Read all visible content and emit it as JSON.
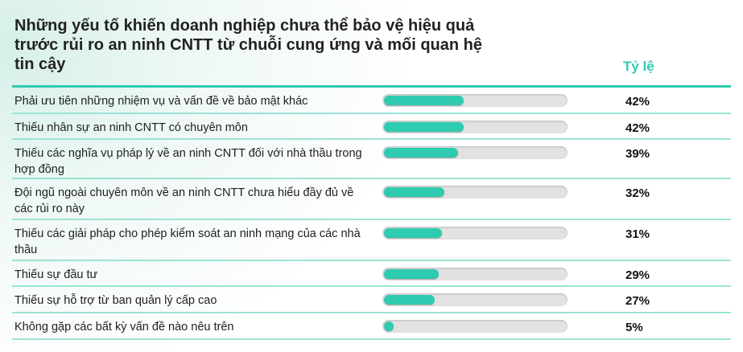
{
  "chart_data": {
    "type": "bar",
    "orientation": "horizontal",
    "title": "Những yếu tố khiến doanh nghiệp chưa thể bảo vệ hiệu quả trước rủi ro an ninh CNTT từ chuỗi cung ứng và mối quan hệ tin cậy",
    "value_header": "Tỷ lệ",
    "unit": "%",
    "xlim": [
      0,
      100
    ],
    "categories": [
      "Phải ưu tiên những nhiệm vụ và vấn đề về bảo mật khác",
      "Thiếu nhân sự an ninh CNTT có chuyên môn",
      "Thiếu các nghĩa vụ pháp lý về an ninh CNTT đối với nhà thầu trong hợp đồng",
      "Đội ngũ ngoài chuyên môn về an ninh CNTT chưa hiểu đầy đủ về các rủi ro này",
      "Thiếu các giải pháp cho phép kiểm soát an ninh mạng của các nhà thầu",
      "Thiếu sự đầu tư",
      "Thiếu sự hỗ trợ từ ban quản lý cấp cao",
      "Không gặp các bất kỳ vấn đề nào nêu trên"
    ],
    "values": [
      42,
      42,
      39,
      32,
      31,
      29,
      27,
      5
    ],
    "labels": [
      "42%",
      "42%",
      "39%",
      "32%",
      "31%",
      "29%",
      "27%",
      "5%"
    ],
    "colors": {
      "bar": "#2ecbb0",
      "track": "#e2e2e2",
      "accent": "#2ecbb0"
    }
  }
}
